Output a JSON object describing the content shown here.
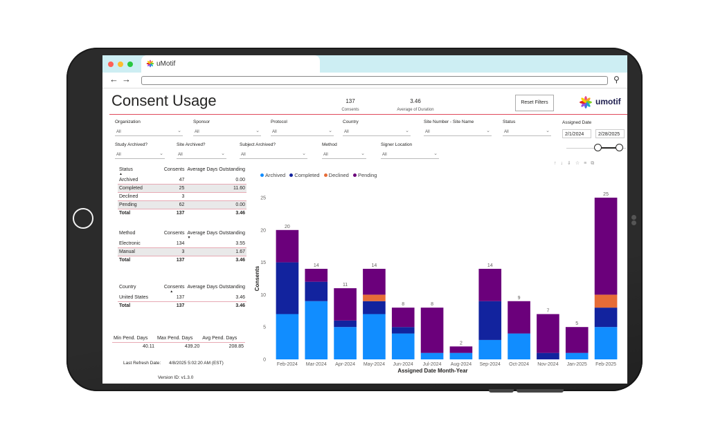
{
  "browser": {
    "tab_title": "uMotif",
    "dot_colors": [
      "#ff5f57",
      "#febc2e",
      "#28c840"
    ]
  },
  "header": {
    "title": "Consent Usage",
    "kpis": [
      {
        "value": "137",
        "label": "Consents"
      },
      {
        "value": "3.46",
        "label": "Average of Duration"
      }
    ],
    "reset_label": "Reset Filters",
    "brand": "umotif"
  },
  "filters": {
    "row1": [
      {
        "label": "Organization",
        "value": "All"
      },
      {
        "label": "Sponsor",
        "value": "All"
      },
      {
        "label": "Protocol",
        "value": "All"
      },
      {
        "label": "Country",
        "value": "All"
      },
      {
        "label": "Site Number - Site Name",
        "value": "All"
      },
      {
        "label": "Status",
        "value": "All"
      }
    ],
    "row2": [
      {
        "label": "Study Archived?",
        "value": "All"
      },
      {
        "label": "Site Archived?",
        "value": "All"
      },
      {
        "label": "Subject Archived?",
        "value": "All"
      },
      {
        "label": "Method",
        "value": "All"
      },
      {
        "label": "Signer Location",
        "value": "All"
      }
    ],
    "assigned_date": {
      "label": "Assigned Date",
      "start": "2/1/2024",
      "end": "2/28/2025"
    }
  },
  "tables": {
    "status": {
      "headers": [
        "Status",
        "Consents",
        "Average Days Outstanding"
      ],
      "rows": [
        [
          "Archived",
          "47",
          "0.00"
        ],
        [
          "Completed",
          "25",
          "11.60"
        ],
        [
          "Declined",
          "3",
          ""
        ],
        [
          "Pending",
          "62",
          "0.00"
        ]
      ],
      "total": [
        "Total",
        "137",
        "3.46"
      ]
    },
    "method": {
      "headers": [
        "Method",
        "Consents",
        "Average Days Outstanding"
      ],
      "rows": [
        [
          "Electronic",
          "134",
          "3.55"
        ],
        [
          "Manual",
          "3",
          "1.67"
        ]
      ],
      "total": [
        "Total",
        "137",
        "3.46"
      ]
    },
    "country": {
      "headers": [
        "Country",
        "Consents",
        "Average Days Outstanding"
      ],
      "rows": [
        [
          "United States",
          "137",
          "3.46"
        ]
      ],
      "total": [
        "Total",
        "137",
        "3.46"
      ]
    },
    "pend_days": {
      "headers": [
        "Min Pend. Days",
        "Max Pend. Days",
        "Avg Pend. Days"
      ],
      "values": [
        "40.11",
        "439.20",
        "208.85"
      ]
    }
  },
  "footer": {
    "refresh_label": "Last Refresh Date:",
    "refresh_value": "4/8/2025 5:02:20 AM (EST)",
    "version": "Version ID: v1.3.0"
  },
  "chart_data": {
    "type": "bar",
    "stacked": true,
    "categories": [
      "Feb-2024",
      "Mar-2024",
      "Apr-2024",
      "May-2024",
      "Jun-2024",
      "Jul-2024",
      "Aug-2024",
      "Sep-2024",
      "Oct-2024",
      "Nov-2024",
      "Jan-2025",
      "Feb-2025"
    ],
    "series": [
      {
        "name": "Archived",
        "color": "#118dff",
        "values": [
          7,
          9,
          5,
          7,
          4,
          1,
          1,
          3,
          4,
          0,
          1,
          5
        ]
      },
      {
        "name": "Completed",
        "color": "#12239e",
        "values": [
          8,
          3,
          1,
          2,
          1,
          0,
          0,
          6,
          0,
          1,
          0,
          3
        ]
      },
      {
        "name": "Declined",
        "color": "#e66c37",
        "values": [
          0,
          0,
          0,
          1,
          0,
          0,
          0,
          0,
          0,
          0,
          0,
          2
        ]
      },
      {
        "name": "Pending",
        "color": "#6b007b",
        "values": [
          5,
          2,
          5,
          4,
          3,
          7,
          1,
          5,
          5,
          6,
          4,
          15
        ]
      }
    ],
    "totals": [
      20,
      14,
      11,
      14,
      8,
      8,
      2,
      14,
      9,
      7,
      5,
      25
    ],
    "xlabel": "Assigned Date Month-Year",
    "ylabel": "Consents",
    "ylim": [
      0,
      25
    ],
    "yticks": [
      0,
      5,
      10,
      15,
      20,
      25
    ],
    "legend": "top-left",
    "grid": false
  }
}
